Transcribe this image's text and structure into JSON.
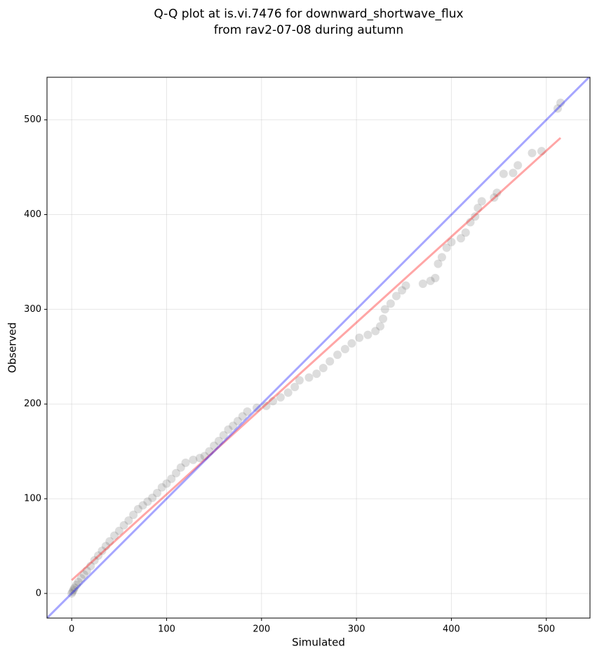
{
  "chart_data": {
    "type": "scatter",
    "title": [
      "Q-Q plot at is.vi.7476 for downward_shortwave_flux",
      "from rav2-07-08 during autumn"
    ],
    "x_label": "Simulated",
    "y_label": "Observed",
    "xlim": [
      -26,
      546
    ],
    "ylim": [
      -26,
      545
    ],
    "xticks": [
      0,
      100,
      200,
      300,
      400,
      500
    ],
    "yticks": [
      0,
      100,
      200,
      300,
      400,
      500
    ],
    "grid": true,
    "series": [
      {
        "color": "#404040",
        "alpha": 0.18,
        "x": [
          0,
          1,
          2,
          3,
          5,
          7,
          10,
          13,
          16,
          20,
          24,
          28,
          32,
          36,
          40,
          45,
          50,
          55,
          60,
          65,
          70,
          75,
          80,
          85,
          90,
          95,
          100,
          105,
          110,
          115,
          120,
          128,
          135,
          140,
          145,
          150,
          155,
          160,
          165,
          170,
          175,
          180,
          185,
          195,
          205,
          212,
          220,
          228,
          235,
          240,
          250,
          258,
          265,
          272,
          280,
          288,
          295,
          303,
          312,
          320,
          325,
          328,
          330,
          336,
          342,
          348,
          352,
          370,
          378,
          383,
          386,
          390,
          395,
          400,
          410,
          415,
          420,
          425,
          428,
          432,
          445,
          448,
          455,
          465,
          470,
          485,
          495,
          512,
          515
        ],
        "values": [
          0,
          2,
          4,
          6,
          9,
          12,
          16,
          20,
          24,
          29,
          35,
          40,
          45,
          50,
          55,
          61,
          66,
          72,
          77,
          83,
          89,
          93,
          97,
          101,
          106,
          112,
          116,
          121,
          127,
          133,
          138,
          141,
          143,
          145,
          150,
          156,
          161,
          167,
          173,
          177,
          182,
          187,
          192,
          196,
          198,
          203,
          207,
          212,
          218,
          225,
          228,
          232,
          238,
          245,
          252,
          258,
          264,
          270,
          273,
          277,
          282,
          290,
          300,
          306,
          314,
          320,
          325,
          327,
          330,
          333,
          348,
          355,
          365,
          371,
          375,
          381,
          392,
          398,
          407,
          414,
          418,
          423,
          443,
          444,
          452,
          465,
          467,
          512,
          518
        ]
      },
      {
        "type": "line",
        "color": "#ff0000",
        "alpha": 0.35,
        "x": [
          0,
          515
        ],
        "values": [
          14,
          481
        ]
      },
      {
        "type": "line",
        "color": "#0000ff",
        "alpha": 0.35,
        "x": [
          -26,
          546
        ],
        "values": [
          -26,
          546
        ]
      }
    ]
  }
}
